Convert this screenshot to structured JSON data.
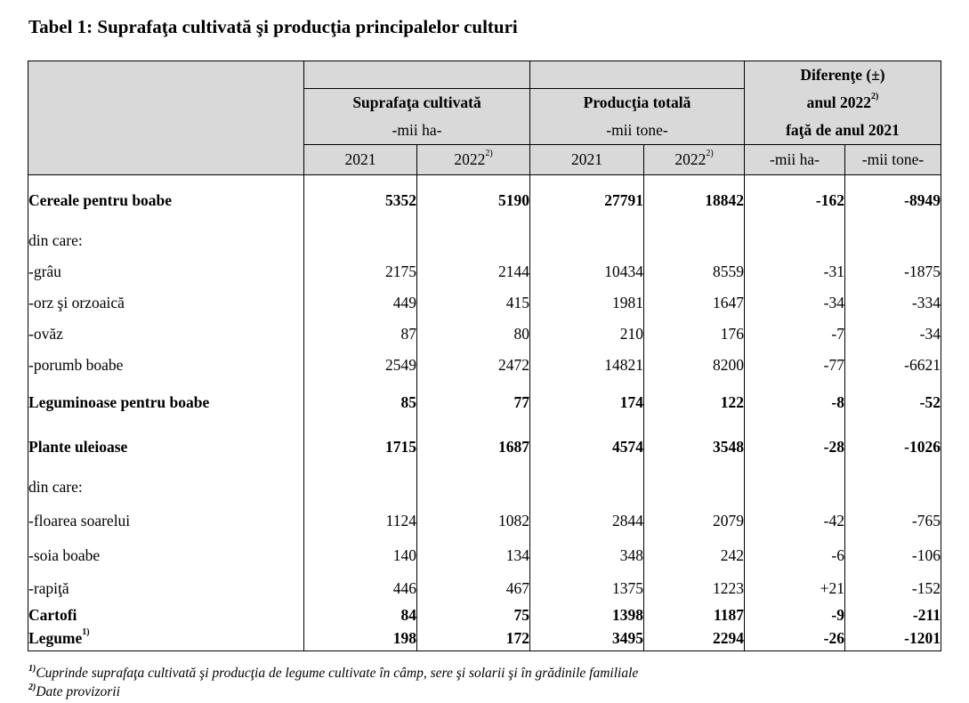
{
  "title": "Tabel 1: Suprafaţa cultivată şi producţia principalelor culturi",
  "header": {
    "diff_line1": "Diferenţe (±)",
    "diff_line2": "anul 2022",
    "diff_line2_sup": "2)",
    "diff_line3": "faţă de anul 2021",
    "area_title": "Suprafaţa cultivată",
    "area_unit": "-mii ha-",
    "prod_title": "Producţia totală",
    "prod_unit": "-mii tone-",
    "y2021a": "2021",
    "y2022a": "2022",
    "y2022a_sup": "2)",
    "y2021b": "2021",
    "y2022b": "2022",
    "y2022b_sup": "2)",
    "diff_unit_ha": "-mii ha-",
    "diff_unit_t": "-mii tone-"
  },
  "rows": [
    {
      "label": "Cereale pentru boabe",
      "bold": true,
      "values": [
        "5352",
        "5190",
        "27791",
        "18842",
        "-162",
        "-8949"
      ]
    },
    {
      "label": "din care:",
      "bold": false,
      "values": [
        "",
        "",
        "",
        "",
        "",
        ""
      ]
    },
    {
      "label": " -grâu",
      "bold": false,
      "values": [
        "2175",
        "2144",
        "10434",
        "8559",
        "-31",
        "-1875"
      ]
    },
    {
      "label": " -orz şi orzoaică",
      "bold": false,
      "values": [
        "449",
        "415",
        "1981",
        "1647",
        "-34",
        "-334"
      ]
    },
    {
      "label": " -ovăz",
      "bold": false,
      "values": [
        "87",
        "80",
        "210",
        "176",
        "-7",
        "-34"
      ]
    },
    {
      "label": " -porumb boabe",
      "bold": false,
      "values": [
        "2549",
        "2472",
        "14821",
        "8200",
        "-77",
        "-6621"
      ]
    },
    {
      "label": "Leguminoase pentru boabe",
      "bold": true,
      "values": [
        "85",
        "77",
        "174",
        "122",
        "-8",
        "-52"
      ]
    },
    {
      "label": "Plante uleioase",
      "bold": true,
      "values": [
        "1715",
        "1687",
        "4574",
        "3548",
        "-28",
        "-1026"
      ]
    },
    {
      "label": "din care:",
      "bold": false,
      "values": [
        "",
        "",
        "",
        "",
        "",
        ""
      ]
    },
    {
      "label": "-floarea soarelui",
      "bold": false,
      "values": [
        "1124",
        "1082",
        "2844",
        "2079",
        "-42",
        "-765"
      ]
    },
    {
      "label": "-soia boabe",
      "bold": false,
      "values": [
        "140",
        "134",
        "348",
        "242",
        "-6",
        "-106"
      ]
    },
    {
      "label": "-rapiţă",
      "bold": false,
      "values": [
        "446",
        "467",
        "1375",
        "1223",
        "+21",
        "-152"
      ]
    },
    {
      "label": "Cartofi",
      "bold": true,
      "values": [
        "84",
        "75",
        "1398",
        "1187",
        "-9",
        "-211"
      ]
    },
    {
      "label": "Legume",
      "label_sup": "1)",
      "bold": true,
      "values": [
        "198",
        "172",
        "3495",
        "2294",
        "-26",
        "-1201"
      ]
    }
  ],
  "footnotes": [
    {
      "mark": "1)",
      "text": "Cuprinde suprafaţa cultivată şi producţia de legume cultivate în câmp, sere şi solarii şi în grădinile familiale"
    },
    {
      "mark": "2)",
      "text": "Date provizorii"
    }
  ]
}
